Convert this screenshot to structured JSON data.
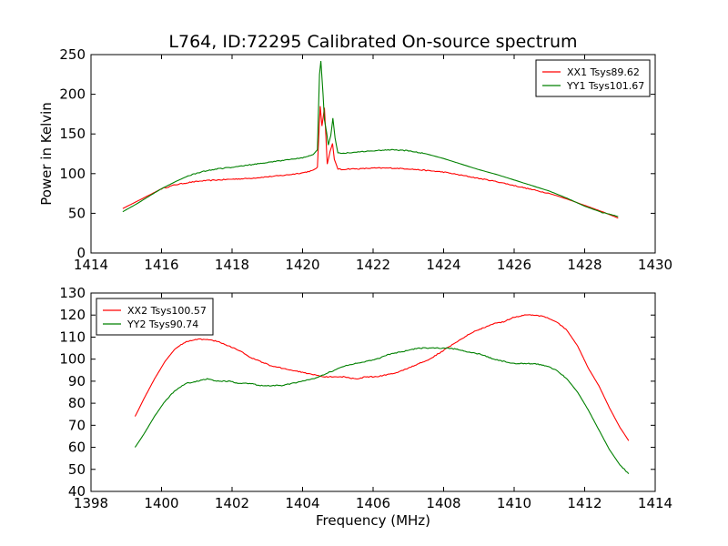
{
  "figure": {
    "title": "L764, ID:72295 Calibrated On-source spectrum"
  },
  "chart_data": [
    {
      "type": "line",
      "title": "L764, ID:72295 Calibrated On-source spectrum",
      "xlabel": "",
      "ylabel": "Power in Kelvin",
      "xlim": [
        1414,
        1430
      ],
      "ylim": [
        0,
        250
      ],
      "xticks": [
        "1414",
        "1416",
        "1418",
        "1420",
        "1422",
        "1424",
        "1426",
        "1428",
        "1430"
      ],
      "yticks": [
        "0",
        "50",
        "100",
        "150",
        "200",
        "250"
      ],
      "grid": false,
      "legend_position": "top-right",
      "series": [
        {
          "name": "XX1 Tsys89.62",
          "color": "#ff0000",
          "x": [
            1414.9,
            1415.3,
            1415.7,
            1416.0,
            1416.4,
            1416.8,
            1417.2,
            1417.6,
            1418.0,
            1418.5,
            1419.0,
            1419.5,
            1420.0,
            1420.3,
            1420.42,
            1420.5,
            1420.55,
            1420.62,
            1420.7,
            1420.78,
            1420.85,
            1420.9,
            1421.0,
            1421.1,
            1421.3,
            1421.6,
            1422.0,
            1422.5,
            1423.0,
            1423.5,
            1424.0,
            1424.5,
            1425.0,
            1425.5,
            1426.0,
            1426.5,
            1427.0,
            1427.5,
            1428.0,
            1428.5,
            1428.95
          ],
          "y": [
            56,
            65,
            74,
            81,
            86,
            89,
            91,
            92,
            93,
            94,
            96,
            98,
            101,
            104,
            108,
            185,
            160,
            183,
            112,
            128,
            138,
            118,
            106,
            105,
            106,
            106,
            107,
            107,
            106,
            104,
            102,
            98,
            94,
            90,
            85,
            80,
            75,
            68,
            60,
            52,
            44
          ]
        },
        {
          "name": "YY1 Tsys101.67",
          "color": "#008000",
          "x": [
            1414.9,
            1415.3,
            1415.7,
            1416.0,
            1416.4,
            1416.8,
            1417.2,
            1417.6,
            1418.0,
            1418.5,
            1419.0,
            1419.5,
            1420.0,
            1420.3,
            1420.42,
            1420.48,
            1420.52,
            1420.58,
            1420.62,
            1420.68,
            1420.73,
            1420.8,
            1420.86,
            1420.92,
            1421.0,
            1421.2,
            1421.5,
            1422.0,
            1422.5,
            1423.0,
            1423.5,
            1424.0,
            1424.5,
            1425.0,
            1425.5,
            1426.0,
            1426.5,
            1427.0,
            1427.5,
            1428.0,
            1428.5,
            1428.95
          ],
          "y": [
            52,
            62,
            73,
            81,
            90,
            98,
            103,
            106,
            108,
            111,
            114,
            117,
            120,
            124,
            130,
            225,
            242,
            200,
            168,
            152,
            136,
            148,
            170,
            145,
            126,
            126,
            127,
            129,
            130,
            129,
            125,
            119,
            112,
            105,
            99,
            92,
            85,
            78,
            69,
            59,
            51,
            46
          ]
        }
      ]
    },
    {
      "type": "line",
      "title": "",
      "xlabel": "Frequency (MHz)",
      "ylabel": "",
      "xlim": [
        1398,
        1414
      ],
      "ylim": [
        40,
        130
      ],
      "xticks": [
        "1398",
        "1400",
        "1402",
        "1404",
        "1406",
        "1408",
        "1410",
        "1412",
        "1414"
      ],
      "yticks": [
        "40",
        "50",
        "60",
        "70",
        "80",
        "90",
        "100",
        "110",
        "120",
        "130"
      ],
      "grid": false,
      "legend_position": "top-left",
      "series": [
        {
          "name": "XX2 Tsys100.57",
          "color": "#ff0000",
          "x": [
            1399.25,
            1399.5,
            1399.8,
            1400.1,
            1400.4,
            1400.7,
            1401.0,
            1401.3,
            1401.6,
            1401.9,
            1402.2,
            1402.5,
            1402.8,
            1403.1,
            1403.4,
            1403.7,
            1404.0,
            1404.3,
            1404.6,
            1404.9,
            1405.2,
            1405.5,
            1405.8,
            1406.1,
            1406.4,
            1406.7,
            1407.0,
            1407.3,
            1407.6,
            1407.9,
            1408.2,
            1408.5,
            1408.8,
            1409.1,
            1409.4,
            1409.7,
            1410.0,
            1410.3,
            1410.6,
            1410.9,
            1411.2,
            1411.5,
            1411.8,
            1412.1,
            1412.4,
            1412.7,
            1413.0,
            1413.25
          ],
          "y": [
            74,
            82,
            91,
            99,
            105,
            108,
            109,
            109,
            108,
            106,
            104,
            101,
            99,
            97,
            96,
            95,
            94,
            93,
            92,
            92,
            92,
            91,
            92,
            92,
            93,
            94,
            96,
            98,
            100,
            103,
            106,
            109,
            112,
            114,
            116,
            117,
            119,
            120,
            120,
            119,
            117,
            113,
            106,
            96,
            88,
            78,
            69,
            63
          ]
        },
        {
          "name": "YY2 Tsys90.74",
          "color": "#008000",
          "x": [
            1399.25,
            1399.5,
            1399.8,
            1400.1,
            1400.4,
            1400.7,
            1401.0,
            1401.3,
            1401.6,
            1401.9,
            1402.2,
            1402.5,
            1402.8,
            1403.1,
            1403.4,
            1403.7,
            1404.0,
            1404.3,
            1404.6,
            1404.9,
            1405.2,
            1405.5,
            1405.8,
            1406.1,
            1406.4,
            1406.7,
            1407.0,
            1407.3,
            1407.6,
            1407.9,
            1408.2,
            1408.5,
            1408.8,
            1409.1,
            1409.4,
            1409.7,
            1410.0,
            1410.3,
            1410.6,
            1410.9,
            1411.2,
            1411.5,
            1411.8,
            1412.1,
            1412.4,
            1412.7,
            1413.0,
            1413.25
          ],
          "y": [
            60,
            66,
            74,
            81,
            86,
            89,
            90,
            91,
            90,
            90,
            89,
            89,
            88,
            88,
            88,
            89,
            90,
            91,
            93,
            95,
            97,
            98,
            99,
            100,
            102,
            103,
            104,
            105,
            105,
            105,
            105,
            104,
            103,
            102,
            100,
            99,
            98,
            98,
            98,
            97,
            95,
            91,
            85,
            77,
            68,
            59,
            52,
            48
          ]
        }
      ]
    }
  ]
}
